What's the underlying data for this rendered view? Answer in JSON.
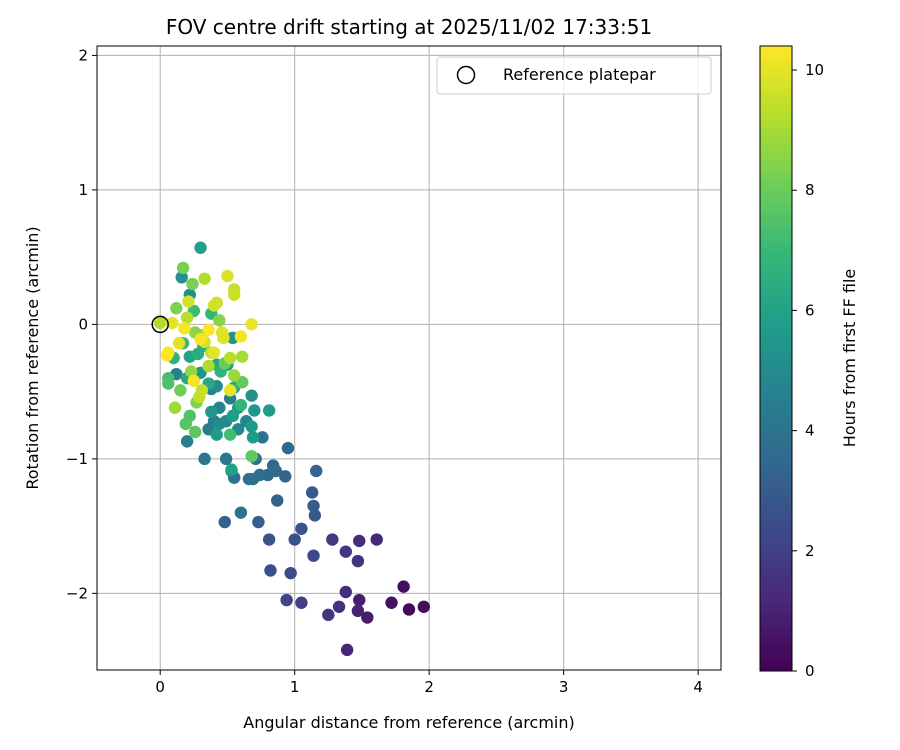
{
  "chart_data": {
    "type": "scatter",
    "title": "FOV centre drift starting at 2025/11/02 17:33:51",
    "xlabel": "Angular distance from reference (arcmin)",
    "ylabel": "Rotation from reference (arcmin)",
    "xlim": [
      -0.47,
      4.17
    ],
    "ylim": [
      -2.57,
      2.07
    ],
    "xticks": [
      0,
      1,
      2,
      3,
      4
    ],
    "xtick_labels": [
      "0",
      "1",
      "2",
      "3",
      "4"
    ],
    "yticks": [
      -2,
      -1,
      0,
      1,
      2
    ],
    "ytick_labels": [
      "−2",
      "−1",
      "0",
      "1",
      "2"
    ],
    "grid": true,
    "legend": {
      "position": "top-right",
      "entries": [
        {
          "label": "Reference platepar",
          "marker": "open-circle"
        }
      ]
    },
    "reference_point": {
      "x": 0.0,
      "y": 0.0
    },
    "colorbar": {
      "label": "Hours from first FF file",
      "colormap": "viridis",
      "range": [
        0,
        10.4
      ],
      "ticks": [
        0,
        2,
        4,
        6,
        8,
        10
      ],
      "tick_labels": [
        "0",
        "2",
        "4",
        "6",
        "8",
        "10"
      ]
    },
    "points": [
      {
        "x": 1.85,
        "y": -2.12,
        "c": 0.2
      },
      {
        "x": 1.96,
        "y": -2.1,
        "c": 0.3
      },
      {
        "x": 1.81,
        "y": -1.95,
        "c": 0.4
      },
      {
        "x": 1.72,
        "y": -2.07,
        "c": 0.5
      },
      {
        "x": 1.54,
        "y": -2.18,
        "c": 0.8
      },
      {
        "x": 1.48,
        "y": -2.05,
        "c": 0.9
      },
      {
        "x": 1.47,
        "y": -2.13,
        "c": 1.0
      },
      {
        "x": 1.39,
        "y": -2.42,
        "c": 1.1
      },
      {
        "x": 1.61,
        "y": -1.6,
        "c": 1.2
      },
      {
        "x": 1.48,
        "y": -1.61,
        "c": 1.3
      },
      {
        "x": 1.38,
        "y": -1.99,
        "c": 1.4
      },
      {
        "x": 1.33,
        "y": -2.1,
        "c": 1.5
      },
      {
        "x": 1.25,
        "y": -2.16,
        "c": 1.6
      },
      {
        "x": 1.47,
        "y": -1.76,
        "c": 1.6
      },
      {
        "x": 1.38,
        "y": -1.69,
        "c": 1.7
      },
      {
        "x": 1.28,
        "y": -1.6,
        "c": 1.8
      },
      {
        "x": 1.05,
        "y": -2.07,
        "c": 2.0
      },
      {
        "x": 0.94,
        "y": -2.05,
        "c": 2.2
      },
      {
        "x": 1.14,
        "y": -1.72,
        "c": 2.3
      },
      {
        "x": 0.97,
        "y": -1.85,
        "c": 2.4
      },
      {
        "x": 0.82,
        "y": -1.83,
        "c": 2.5
      },
      {
        "x": 1.0,
        "y": -1.6,
        "c": 2.6
      },
      {
        "x": 1.05,
        "y": -1.52,
        "c": 2.7
      },
      {
        "x": 0.81,
        "y": -1.6,
        "c": 2.8
      },
      {
        "x": 1.15,
        "y": -1.42,
        "c": 2.9
      },
      {
        "x": 1.14,
        "y": -1.35,
        "c": 3.0
      },
      {
        "x": 1.13,
        "y": -1.25,
        "c": 3.0
      },
      {
        "x": 0.73,
        "y": -1.47,
        "c": 3.1
      },
      {
        "x": 0.48,
        "y": -1.47,
        "c": 3.2
      },
      {
        "x": 0.87,
        "y": -1.31,
        "c": 3.2
      },
      {
        "x": 1.16,
        "y": -1.09,
        "c": 3.3
      },
      {
        "x": 0.93,
        "y": -1.13,
        "c": 3.4
      },
      {
        "x": 0.95,
        "y": -0.92,
        "c": 3.5
      },
      {
        "x": 0.84,
        "y": -1.05,
        "c": 3.5
      },
      {
        "x": 0.8,
        "y": -1.12,
        "c": 3.6
      },
      {
        "x": 0.86,
        "y": -1.09,
        "c": 3.6
      },
      {
        "x": 0.74,
        "y": -1.12,
        "c": 3.7
      },
      {
        "x": 0.69,
        "y": -1.15,
        "c": 3.7
      },
      {
        "x": 0.66,
        "y": -1.15,
        "c": 3.8
      },
      {
        "x": 0.6,
        "y": -1.4,
        "c": 3.8
      },
      {
        "x": 0.71,
        "y": -1.0,
        "c": 3.9
      },
      {
        "x": 0.76,
        "y": -0.84,
        "c": 4.0
      },
      {
        "x": 0.55,
        "y": -1.14,
        "c": 4.0
      },
      {
        "x": 0.33,
        "y": -1.0,
        "c": 4.1
      },
      {
        "x": 0.49,
        "y": -1.0,
        "c": 4.2
      },
      {
        "x": 0.53,
        "y": -1.09,
        "c": 4.2
      },
      {
        "x": 0.36,
        "y": -0.78,
        "c": 4.3
      },
      {
        "x": 0.4,
        "y": -0.72,
        "c": 4.4
      },
      {
        "x": 0.2,
        "y": -0.87,
        "c": 4.5
      },
      {
        "x": 0.52,
        "y": -0.55,
        "c": 4.5
      },
      {
        "x": 0.12,
        "y": -0.37,
        "c": 4.6
      },
      {
        "x": 0.38,
        "y": -0.48,
        "c": 4.6
      },
      {
        "x": 0.44,
        "y": -0.62,
        "c": 4.7
      },
      {
        "x": 0.64,
        "y": -0.72,
        "c": 4.8
      },
      {
        "x": 0.58,
        "y": -0.78,
        "c": 4.9
      },
      {
        "x": 0.44,
        "y": -0.74,
        "c": 5.0
      },
      {
        "x": 0.49,
        "y": -0.72,
        "c": 5.0
      },
      {
        "x": 0.42,
        "y": -0.46,
        "c": 5.0
      },
      {
        "x": 0.22,
        "y": 0.22,
        "c": 5.1
      },
      {
        "x": 0.16,
        "y": 0.35,
        "c": 5.2
      },
      {
        "x": 0.68,
        "y": -0.53,
        "c": 5.2
      },
      {
        "x": 0.54,
        "y": -0.1,
        "c": 5.3
      },
      {
        "x": 0.26,
        "y": -0.38,
        "c": 5.3
      },
      {
        "x": 0.3,
        "y": -0.36,
        "c": 5.4
      },
      {
        "x": 0.38,
        "y": -0.65,
        "c": 5.4
      },
      {
        "x": 0.58,
        "y": -0.62,
        "c": 5.5
      },
      {
        "x": 0.7,
        "y": -0.64,
        "c": 5.5
      },
      {
        "x": 0.68,
        "y": -0.76,
        "c": 5.6
      },
      {
        "x": 0.81,
        "y": -0.64,
        "c": 5.6
      },
      {
        "x": 0.69,
        "y": -0.84,
        "c": 5.7
      },
      {
        "x": 0.42,
        "y": -0.82,
        "c": 5.7
      },
      {
        "x": 0.54,
        "y": -0.68,
        "c": 5.8
      },
      {
        "x": 0.3,
        "y": 0.57,
        "c": 5.9
      },
      {
        "x": 0.5,
        "y": -0.3,
        "c": 5.9
      },
      {
        "x": 0.22,
        "y": -0.24,
        "c": 6.0
      },
      {
        "x": 0.53,
        "y": -1.08,
        "c": 6.0
      },
      {
        "x": 0.42,
        "y": -0.3,
        "c": 6.1
      },
      {
        "x": 0.2,
        "y": -0.4,
        "c": 6.2
      },
      {
        "x": 0.36,
        "y": -0.44,
        "c": 6.2
      },
      {
        "x": 0.55,
        "y": -0.47,
        "c": 6.3
      },
      {
        "x": 0.28,
        "y": -0.22,
        "c": 6.4
      },
      {
        "x": 0.32,
        "y": -0.16,
        "c": 6.5
      },
      {
        "x": 0.1,
        "y": -0.25,
        "c": 6.6
      },
      {
        "x": 0.45,
        "y": -0.35,
        "c": 6.7
      },
      {
        "x": 0.6,
        "y": -0.6,
        "c": 6.8
      },
      {
        "x": 0.38,
        "y": 0.08,
        "c": 6.9
      },
      {
        "x": 0.17,
        "y": -0.14,
        "c": 7.0
      },
      {
        "x": 0.25,
        "y": 0.1,
        "c": 7.1
      },
      {
        "x": 0.52,
        "y": -0.82,
        "c": 7.2
      },
      {
        "x": 0.06,
        "y": -0.4,
        "c": 7.3
      },
      {
        "x": 0.06,
        "y": -0.44,
        "c": 7.4
      },
      {
        "x": 0.22,
        "y": -0.68,
        "c": 7.5
      },
      {
        "x": 0.19,
        "y": -0.74,
        "c": 7.6
      },
      {
        "x": 0.26,
        "y": -0.8,
        "c": 7.7
      },
      {
        "x": 0.68,
        "y": -0.98,
        "c": 7.8
      },
      {
        "x": 0.61,
        "y": -0.43,
        "c": 7.9
      },
      {
        "x": 0.48,
        "y": -0.29,
        "c": 8.0
      },
      {
        "x": 0.15,
        "y": -0.49,
        "c": 8.1
      },
      {
        "x": 0.17,
        "y": 0.42,
        "c": 8.2
      },
      {
        "x": 0.24,
        "y": 0.3,
        "c": 8.2
      },
      {
        "x": 0.12,
        "y": 0.12,
        "c": 8.3
      },
      {
        "x": 0.27,
        "y": -0.58,
        "c": 8.4
      },
      {
        "x": 0.44,
        "y": 0.03,
        "c": 8.5
      },
      {
        "x": 0.3,
        "y": -0.08,
        "c": 8.5
      },
      {
        "x": 0.26,
        "y": -0.06,
        "c": 8.6
      },
      {
        "x": 0.23,
        "y": -0.35,
        "c": 8.7
      },
      {
        "x": 0.55,
        "y": -0.38,
        "c": 8.8
      },
      {
        "x": 0.11,
        "y": -0.62,
        "c": 8.9
      },
      {
        "x": 0.61,
        "y": -0.24,
        "c": 9.0
      },
      {
        "x": 0.36,
        "y": -0.31,
        "c": 9.1
      },
      {
        "x": 0.33,
        "y": 0.34,
        "c": 9.2
      },
      {
        "x": 0.0,
        "y": 0.01,
        "c": 9.2
      },
      {
        "x": 0.2,
        "y": 0.05,
        "c": 9.3
      },
      {
        "x": 0.52,
        "y": -0.25,
        "c": 9.3
      },
      {
        "x": 0.38,
        "y": -0.21,
        "c": 9.4
      },
      {
        "x": 0.29,
        "y": -0.54,
        "c": 9.4
      },
      {
        "x": 0.31,
        "y": -0.49,
        "c": 9.5
      },
      {
        "x": 0.55,
        "y": 0.26,
        "c": 9.5
      },
      {
        "x": 0.55,
        "y": 0.22,
        "c": 9.6
      },
      {
        "x": 0.42,
        "y": 0.16,
        "c": 9.6
      },
      {
        "x": 0.4,
        "y": 0.14,
        "c": 9.7
      },
      {
        "x": 0.21,
        "y": 0.17,
        "c": 9.7
      },
      {
        "x": 0.5,
        "y": 0.36,
        "c": 9.8
      },
      {
        "x": 0.33,
        "y": -0.13,
        "c": 9.8
      },
      {
        "x": 0.46,
        "y": -0.06,
        "c": 9.9
      },
      {
        "x": 0.47,
        "y": -0.1,
        "c": 9.9
      },
      {
        "x": 0.14,
        "y": -0.14,
        "c": 10.0
      },
      {
        "x": 0.09,
        "y": 0.01,
        "c": 10.0
      },
      {
        "x": 0.4,
        "y": -0.21,
        "c": 10.0
      },
      {
        "x": 0.52,
        "y": -0.49,
        "c": 10.1
      },
      {
        "x": 0.68,
        "y": 0.0,
        "c": 10.1
      },
      {
        "x": 0.6,
        "y": -0.09,
        "c": 10.2
      },
      {
        "x": 0.25,
        "y": -0.42,
        "c": 10.2
      },
      {
        "x": 0.18,
        "y": -0.03,
        "c": 10.3
      },
      {
        "x": 0.06,
        "y": -0.21,
        "c": 10.3
      },
      {
        "x": 0.3,
        "y": -0.11,
        "c": 10.3
      },
      {
        "x": 0.36,
        "y": -0.04,
        "c": 10.4
      },
      {
        "x": 0.05,
        "y": -0.23,
        "c": 10.4
      }
    ]
  }
}
